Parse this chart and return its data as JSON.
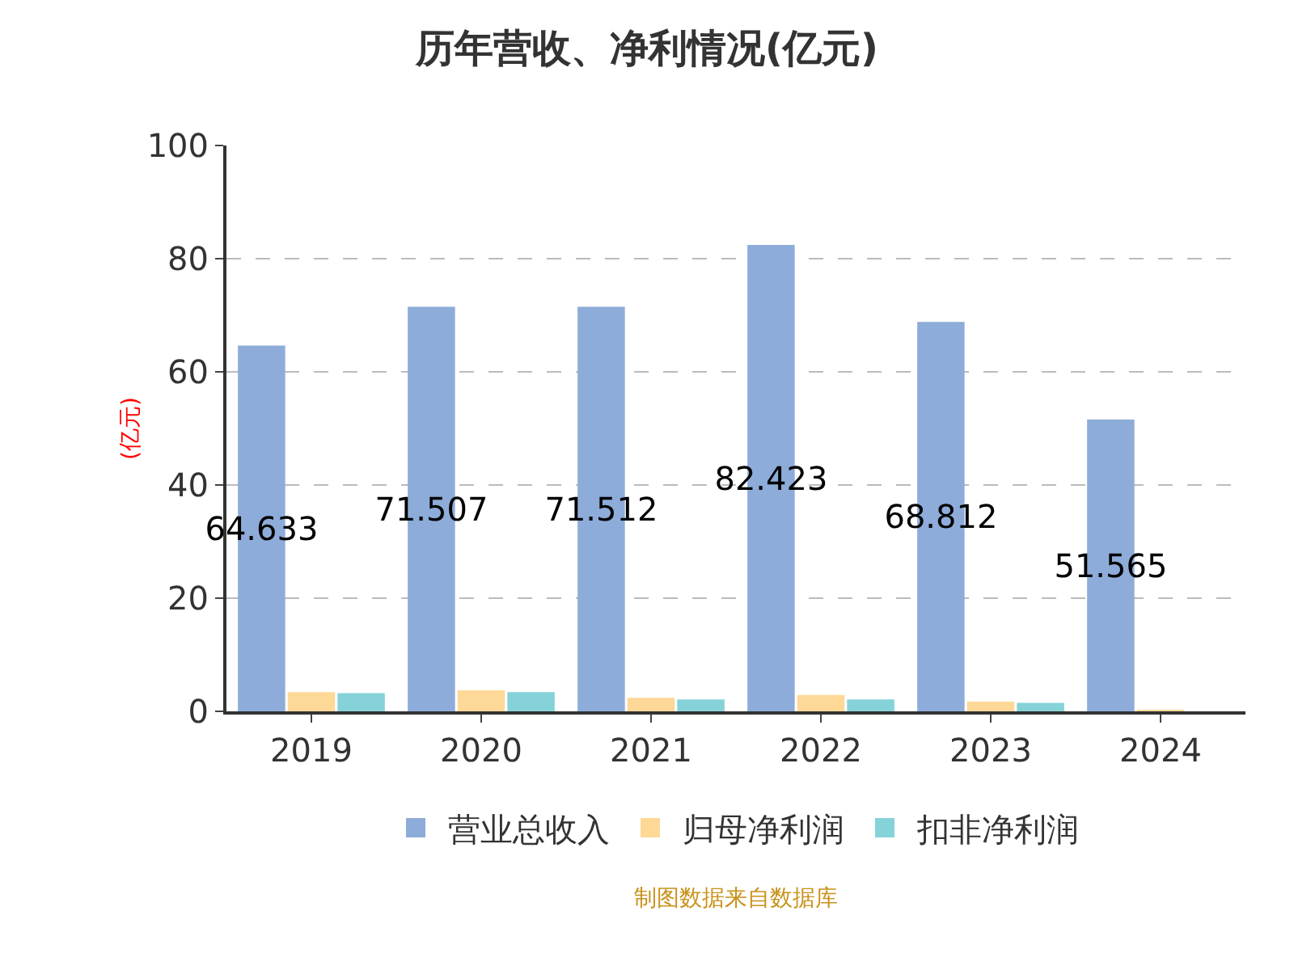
{
  "chart_data": {
    "type": "bar",
    "title": "历年营收、净利情况(亿元)",
    "ylabel": "(亿元)",
    "categories": [
      "2019",
      "2020",
      "2021",
      "2022",
      "2023",
      "2024"
    ],
    "series": [
      {
        "name": "营业总收入",
        "color": "#8eacd9",
        "values": [
          64.633,
          71.507,
          71.512,
          82.423,
          68.812,
          51.565
        ],
        "value_labels": [
          "64.633",
          "71.507",
          "71.512",
          "82.423",
          "68.812",
          "51.565"
        ]
      },
      {
        "name": "归母净利润",
        "color": "#fdd897",
        "values": [
          3.4,
          3.7,
          2.4,
          2.9,
          1.7,
          0.2
        ]
      },
      {
        "name": "扣非净利润",
        "color": "#85d3d8",
        "values": [
          3.2,
          3.4,
          2.1,
          2.1,
          1.5,
          null
        ]
      }
    ],
    "ylim": [
      0,
      100
    ],
    "yticks": [
      0,
      20,
      40,
      60,
      80,
      100
    ],
    "grid": "y",
    "legend": "bottom",
    "annotations": [
      "制图数据来自数据库"
    ]
  }
}
